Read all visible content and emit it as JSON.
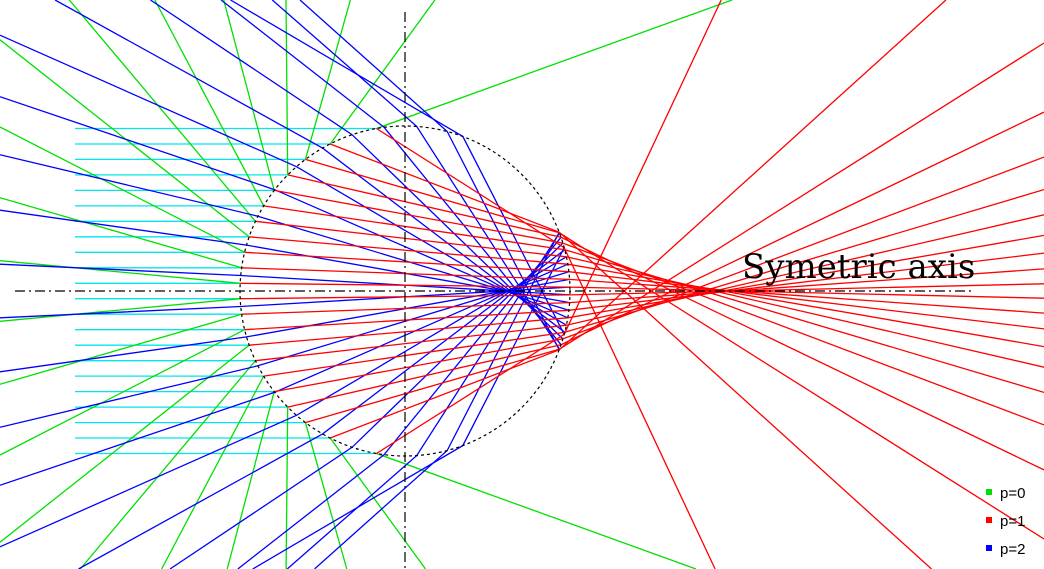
{
  "axis_label": "Symetric axis",
  "legend": {
    "items": [
      {
        "label": "p=0",
        "color": "#00e000"
      },
      {
        "label": "p=1",
        "color": "#ff0000"
      },
      {
        "label": "p=2",
        "color": "#0000ff"
      }
    ]
  },
  "colors": {
    "incident": "#00e5ee",
    "p0": "#00e000",
    "p1": "#ff0000",
    "p2": "#0000ff",
    "circle": "#000000",
    "axes": "#000000"
  },
  "rays": {
    "incident_count": 22,
    "p1_ray_count": 22
  }
}
